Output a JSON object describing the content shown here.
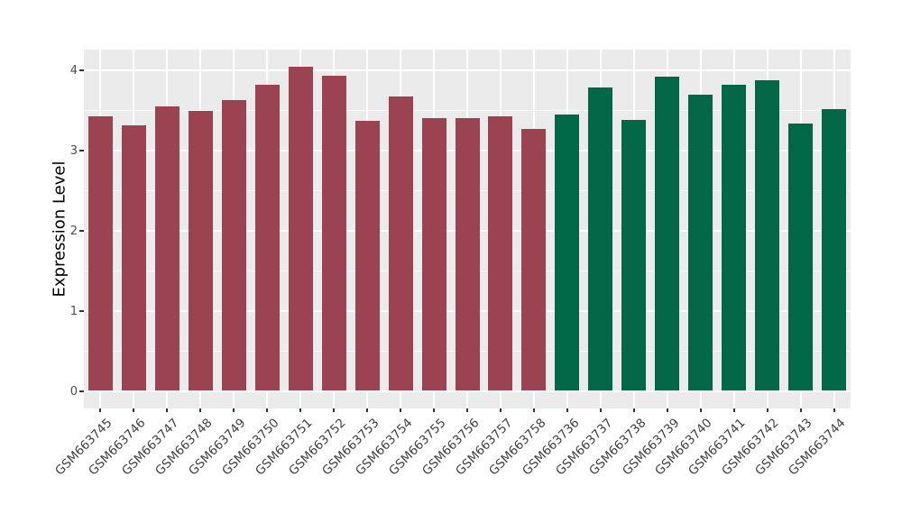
{
  "chart_data": {
    "type": "bar",
    "title": "",
    "xlabel": "",
    "ylabel": "Expression Level",
    "categories": [
      "GSM663745",
      "GSM663746",
      "GSM663747",
      "GSM663748",
      "GSM663749",
      "GSM663750",
      "GSM663751",
      "GSM663752",
      "GSM663753",
      "GSM663754",
      "GSM663755",
      "GSM663756",
      "GSM663757",
      "GSM663758",
      "GSM663736",
      "GSM663737",
      "GSM663738",
      "GSM663739",
      "GSM663740",
      "GSM663741",
      "GSM663742",
      "GSM663743",
      "GSM663744"
    ],
    "values": [
      3.41,
      3.3,
      3.54,
      3.48,
      3.61,
      3.8,
      4.03,
      3.92,
      3.36,
      3.66,
      3.39,
      3.39,
      3.41,
      3.26,
      3.43,
      3.77,
      3.37,
      3.91,
      3.68,
      3.8,
      3.86,
      3.32,
      3.5
    ],
    "groups": [
      "group1",
      "group1",
      "group1",
      "group1",
      "group1",
      "group1",
      "group1",
      "group1",
      "group1",
      "group1",
      "group1",
      "group1",
      "group1",
      "group1",
      "group2",
      "group2",
      "group2",
      "group2",
      "group2",
      "group2",
      "group2",
      "group2",
      "group2"
    ],
    "group_colors": {
      "group1": "#9B4351",
      "group2": "#016747"
    },
    "yticks": [
      0,
      1,
      2,
      3,
      4
    ],
    "yminor": [
      0.5,
      1.5,
      2.5,
      3.5
    ],
    "ylim": [
      0,
      4.25
    ],
    "grid": true,
    "legend_position": "none",
    "panel_bg": "#EBEBEB",
    "grid_color": "#FFFFFF",
    "axis_text_color": "#4D4D4D",
    "outer_bg": "#FFFFFF"
  }
}
